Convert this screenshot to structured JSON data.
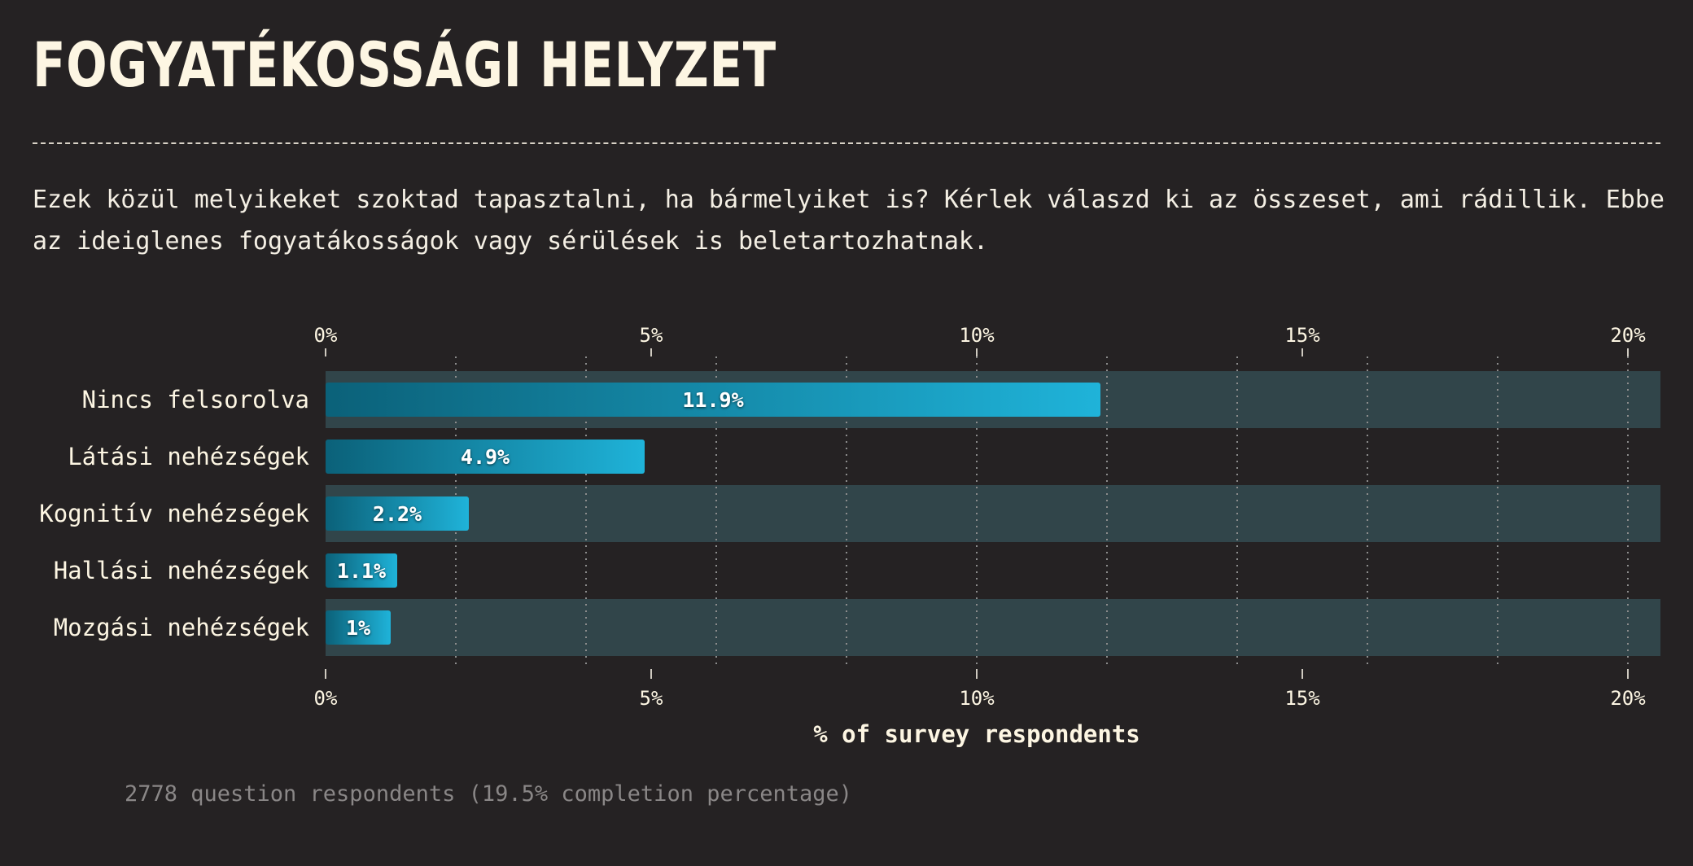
{
  "title": "FOGYATÉKOSSÁGI HELYZET",
  "question": "Ezek közül melyikeket szoktad tapasztalni, ha bármelyiket is? Kérlek válaszd ki az összeset, ami rádillik. Ebbe az ideiglenes fogyatákosságok vagy sérülések is beletartozhatnak.",
  "footnote": "2778 question respondents (19.5% completion percentage)",
  "colors": {
    "background": "#252223",
    "band": "#31454a",
    "bar_start": "#0b6179",
    "bar_end": "#1fb3d9",
    "text": "#fdf6e3",
    "grid": "#8c8c8c"
  },
  "chart_data": {
    "type": "bar",
    "orientation": "horizontal",
    "categories": [
      "Nincs felsorolva",
      "Látási nehézségek",
      "Kognitív nehézségek",
      "Hallási nehézségek",
      "Mozgási nehézségek"
    ],
    "values": [
      11.9,
      4.9,
      2.2,
      1.1,
      1
    ],
    "data_labels": [
      "11.9%",
      "4.9%",
      "2.2%",
      "1.1%",
      "1%"
    ],
    "xlim": [
      0,
      20.5
    ],
    "ticks": [
      0,
      5,
      10,
      15,
      20
    ],
    "tick_labels": [
      "0%",
      "5%",
      "10%",
      "15%",
      "20%"
    ],
    "minor_grid": [
      2,
      4,
      6,
      8,
      10,
      12,
      14,
      16,
      18,
      20
    ],
    "xlabel": "% of survey respondents",
    "axis_top": true,
    "axis_bottom": true,
    "grid": true
  }
}
